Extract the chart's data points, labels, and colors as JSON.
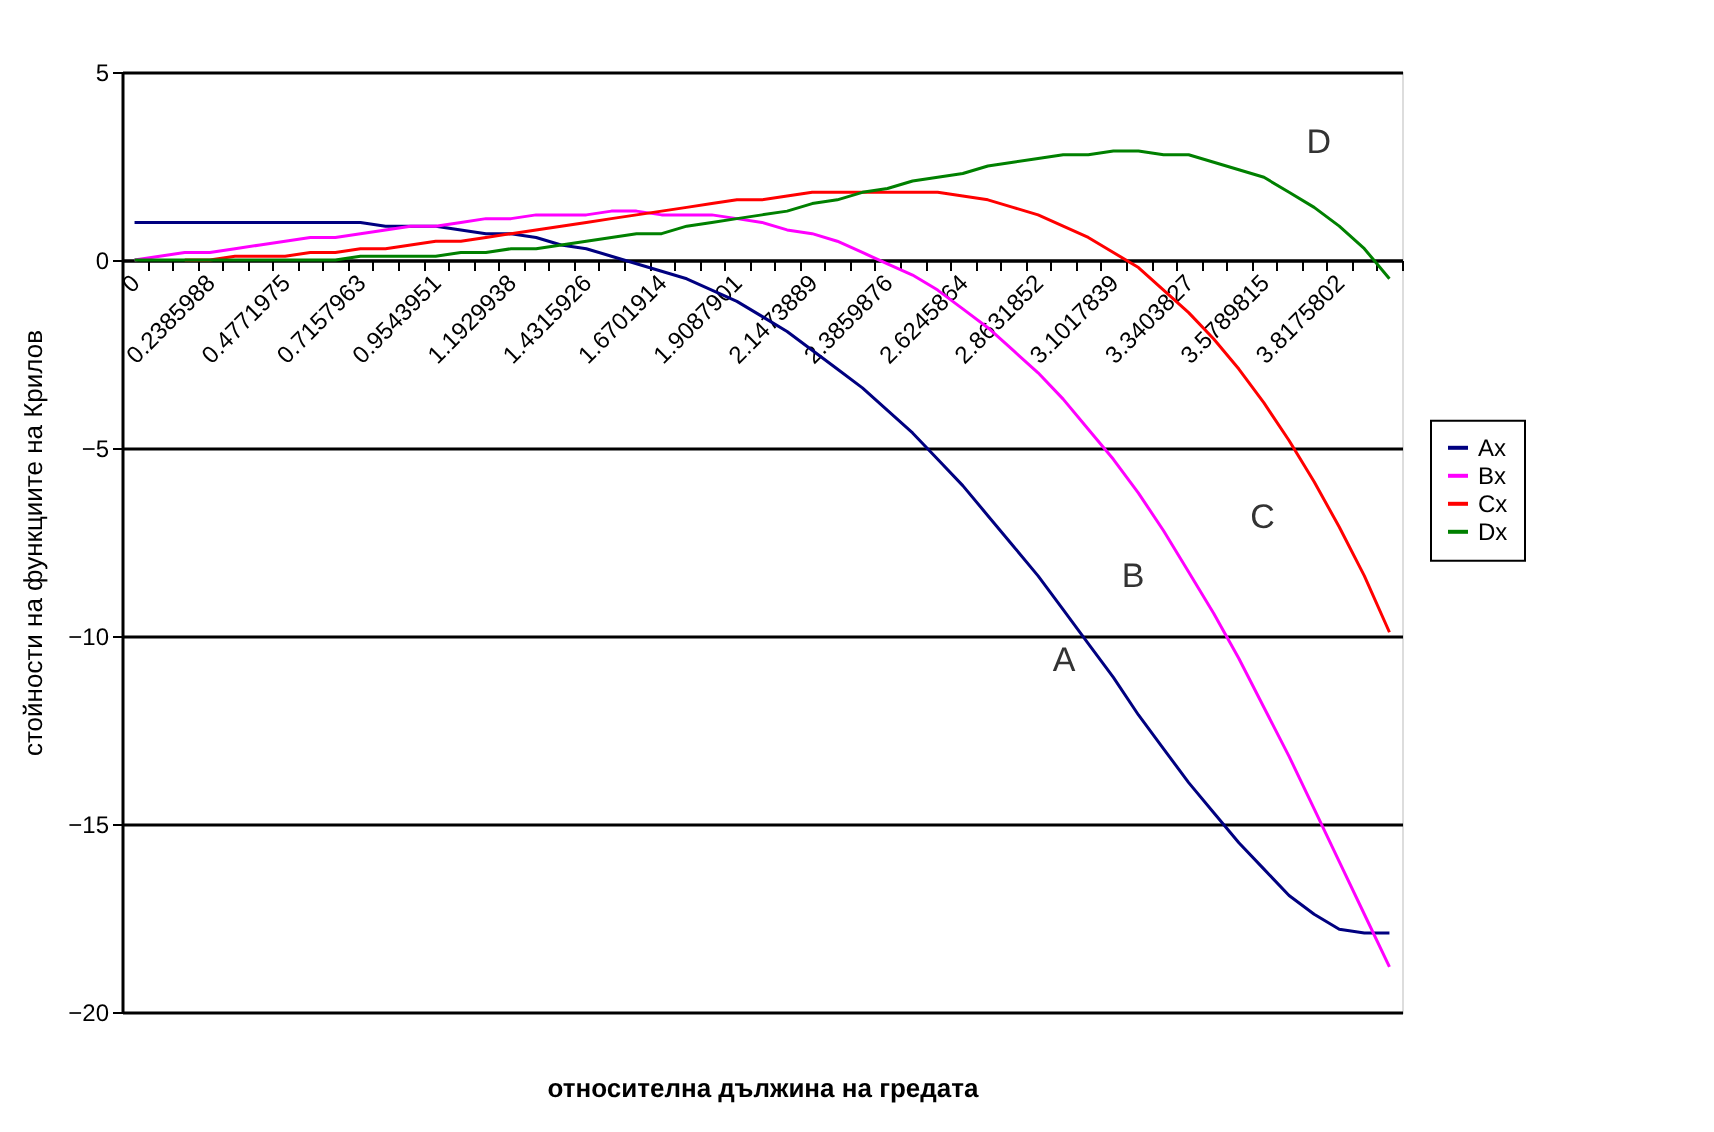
{
  "chart_data": {
    "type": "line",
    "xlabel": "относителна дължина на гредата",
    "ylabel": "стойности на функциите на Крилов",
    "categories": [
      "0",
      null,
      null,
      "0.2385988",
      null,
      null,
      "0.4771975",
      null,
      null,
      "0.7157963",
      null,
      null,
      "0.9543951",
      null,
      null,
      "1.1929938",
      null,
      null,
      "1.4315926",
      null,
      null,
      "1.6701914",
      null,
      null,
      "1.9087901",
      null,
      null,
      "2.1473889",
      null,
      null,
      "2.3859876",
      null,
      null,
      "2.6245864",
      null,
      null,
      "2.8631852",
      null,
      null,
      "3.1017839",
      null,
      null,
      "3.3403827",
      null,
      null,
      "3.5789815",
      null,
      null,
      "3.8175802",
      null,
      null
    ],
    "series": [
      {
        "name": "Ax",
        "color": "#000080",
        "values": [
          1.0,
          1.0,
          1.0,
          1.0,
          1.0,
          1.0,
          1.0,
          1.0,
          1.0,
          1.0,
          0.9,
          0.9,
          0.9,
          0.8,
          0.7,
          0.7,
          0.6,
          0.4,
          0.3,
          0.1,
          -0.1,
          -0.3,
          -0.5,
          -0.8,
          -1.1,
          -1.5,
          -1.9,
          -2.4,
          -2.9,
          -3.4,
          -4.0,
          -4.6,
          -5.3,
          -6.0,
          -6.8,
          -7.6,
          -8.4,
          -9.3,
          -10.2,
          -11.1,
          -12.1,
          -13.0,
          -13.9,
          -14.7,
          -15.5,
          -16.2,
          -16.9,
          -17.4,
          -17.8,
          -17.9,
          -17.9
        ]
      },
      {
        "name": "Bx",
        "color": "#ff00ff",
        "values": [
          0.0,
          0.1,
          0.2,
          0.2,
          0.3,
          0.4,
          0.5,
          0.6,
          0.6,
          0.7,
          0.8,
          0.9,
          0.9,
          1.0,
          1.1,
          1.1,
          1.2,
          1.2,
          1.2,
          1.3,
          1.3,
          1.2,
          1.2,
          1.2,
          1.1,
          1.0,
          0.8,
          0.7,
          0.5,
          0.2,
          -0.1,
          -0.4,
          -0.8,
          -1.3,
          -1.8,
          -2.4,
          -3.0,
          -3.7,
          -4.5,
          -5.3,
          -6.2,
          -7.2,
          -8.3,
          -9.4,
          -10.6,
          -11.9,
          -13.2,
          -14.6,
          -16.0,
          -17.4,
          -18.8
        ]
      },
      {
        "name": "Cx",
        "color": "#ff0000",
        "values": [
          null,
          null,
          0.0,
          0.0,
          0.1,
          0.1,
          0.1,
          0.2,
          0.2,
          0.3,
          0.3,
          0.4,
          0.5,
          0.5,
          0.6,
          0.7,
          0.8,
          0.9,
          1.0,
          1.1,
          1.2,
          1.3,
          1.4,
          1.5,
          1.6,
          1.6,
          1.7,
          1.8,
          1.8,
          1.8,
          1.8,
          1.8,
          1.8,
          1.7,
          1.6,
          1.4,
          1.2,
          0.9,
          0.6,
          0.2,
          -0.2,
          -0.8,
          -1.4,
          -2.1,
          -2.9,
          -3.8,
          -4.8,
          -5.9,
          -7.1,
          -8.4,
          -9.9
        ]
      },
      {
        "name": "Dx",
        "color": "#008000",
        "values": [
          0.0,
          0.0,
          0.0,
          0.0,
          0.0,
          0.0,
          0.0,
          0.0,
          0.0,
          0.1,
          0.1,
          0.1,
          0.1,
          0.2,
          0.2,
          0.3,
          0.3,
          0.4,
          0.5,
          0.6,
          0.7,
          0.7,
          0.9,
          1.0,
          1.1,
          1.2,
          1.3,
          1.5,
          1.6,
          1.8,
          1.9,
          2.1,
          2.2,
          2.3,
          2.5,
          2.6,
          2.7,
          2.8,
          2.8,
          2.9,
          2.9,
          2.8,
          2.8,
          2.6,
          2.4,
          2.2,
          1.8,
          1.4,
          0.9,
          0.3,
          -0.5
        ]
      }
    ],
    "ylim": [
      -20,
      5
    ],
    "yticks": [
      -20,
      -15,
      -10,
      -5,
      0,
      5
    ],
    "grid": "y",
    "legend": "right",
    "marker": "none",
    "line_style": "solid",
    "annotations": [
      "A",
      "B",
      "C",
      "D"
    ]
  }
}
